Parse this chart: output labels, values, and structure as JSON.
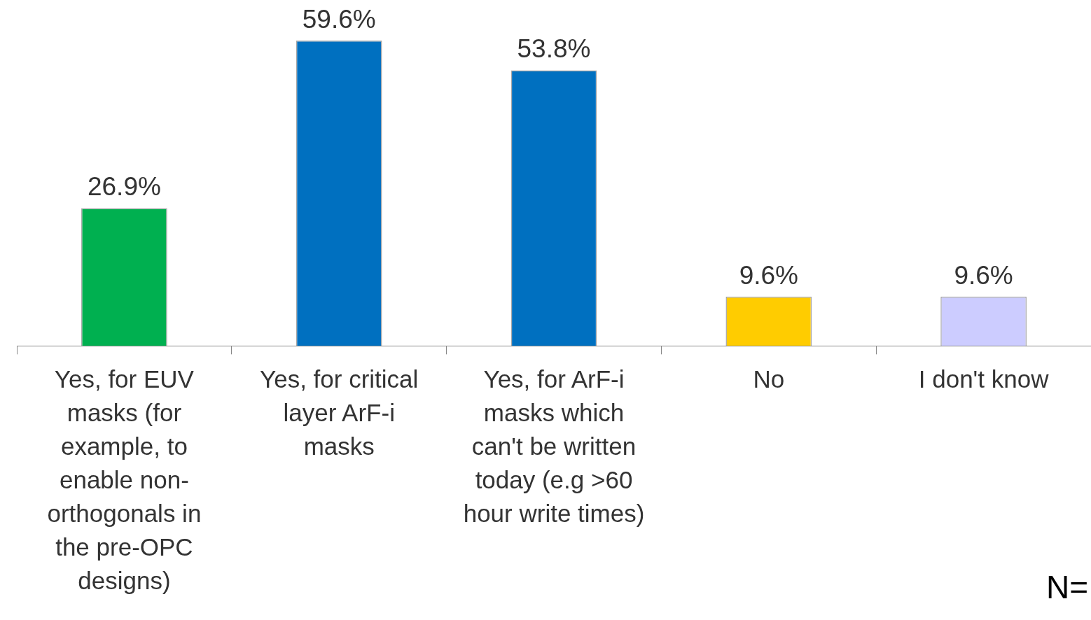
{
  "chart_data": {
    "type": "bar",
    "categories": [
      "Yes, for EUV masks (for example, to enable non-orthogonals in the pre-OPC designs)",
      "Yes, for critical layer ArF-i masks",
      "Yes, for ArF-i masks which can't be written today (e.g >60 hour write times)",
      "No",
      "I don't know"
    ],
    "values": [
      26.9,
      59.6,
      53.8,
      9.6,
      9.6
    ],
    "value_labels": [
      "26.9%",
      "59.6%",
      "53.8%",
      "9.6%",
      "9.6%"
    ],
    "colors": [
      "#00b050",
      "#0070c0",
      "#0070c0",
      "#ffcc00",
      "#ccccff"
    ],
    "annotations": [
      "N="
    ],
    "legend": false,
    "grid": false
  }
}
